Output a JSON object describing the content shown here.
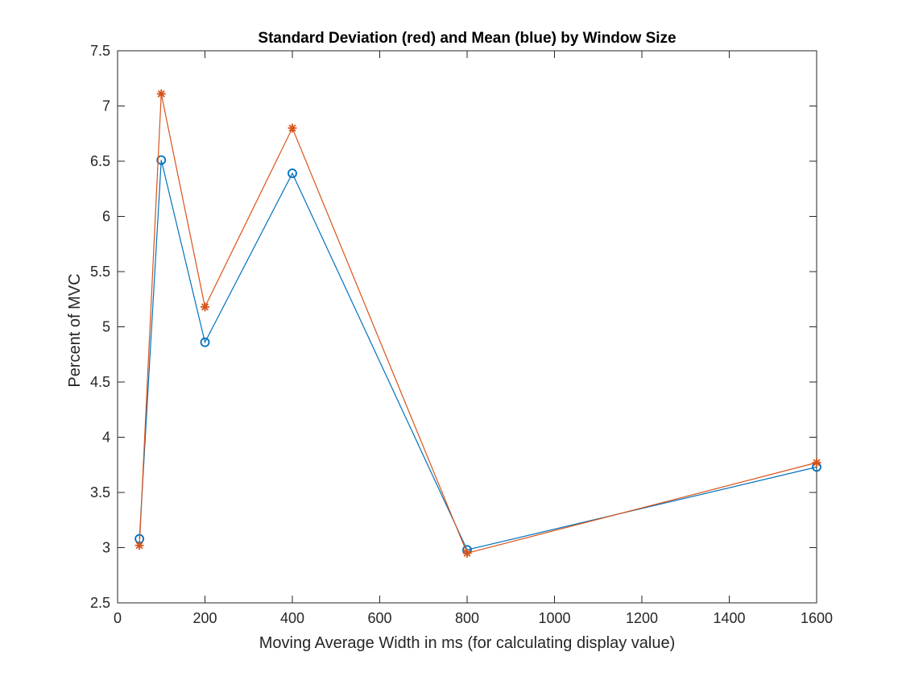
{
  "chart_data": {
    "type": "line",
    "title": "Standard Deviation (red) and Mean (blue) by Window Size",
    "xlabel": "Moving Average Width in ms (for calculating display value)",
    "ylabel": "Percent of MVC",
    "xlim": [
      0,
      1600
    ],
    "ylim": [
      2.5,
      7.5
    ],
    "xticks": [
      0,
      200,
      400,
      600,
      800,
      1000,
      1200,
      1400,
      1600
    ],
    "yticks": [
      2.5,
      3,
      3.5,
      4,
      4.5,
      5,
      5.5,
      6,
      6.5,
      7,
      7.5
    ],
    "xtick_labels": [
      "0",
      "200",
      "400",
      "600",
      "800",
      "1000",
      "1200",
      "1400",
      "1600"
    ],
    "ytick_labels": [
      "2.5",
      "3",
      "3.5",
      "4",
      "4.5",
      "5",
      "5.5",
      "6",
      "6.5",
      "7",
      "7.5"
    ],
    "grid": false,
    "x": [
      50,
      100,
      200,
      400,
      800,
      1600
    ],
    "series": [
      {
        "values": [
          3.08,
          6.51,
          4.86,
          6.39,
          2.98,
          3.73
        ],
        "color": "#0072BD",
        "marker": "circle"
      },
      {
        "values": [
          3.02,
          7.11,
          5.18,
          6.8,
          2.95,
          3.77
        ],
        "color": "#D95319",
        "marker": "asterisk"
      }
    ]
  }
}
